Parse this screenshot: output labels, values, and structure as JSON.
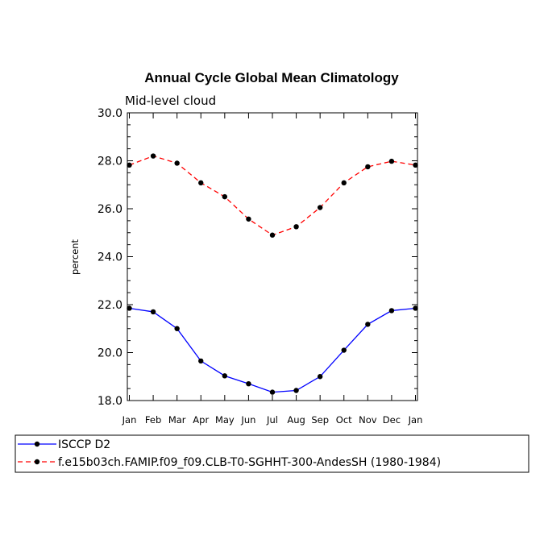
{
  "chart_data": {
    "type": "line",
    "title": "Annual Cycle Global Mean Climatology",
    "subtitle": "Mid-level cloud",
    "xlabel": "",
    "ylabel": "percent",
    "categories": [
      "Jan",
      "Feb",
      "Mar",
      "Apr",
      "May",
      "Jun",
      "Jul",
      "Aug",
      "Sep",
      "Oct",
      "Nov",
      "Dec",
      "Jan"
    ],
    "ylim": [
      18.0,
      30.0
    ],
    "yticks": [
      "18.0",
      "20.0",
      "22.0",
      "24.0",
      "26.0",
      "28.0",
      "30.0"
    ],
    "grid": false,
    "legend_position": "bottom",
    "series": [
      {
        "name": "ISCCP D2",
        "color": "#0000ff",
        "dash": "solid",
        "marker": "filled-circle",
        "values": [
          21.85,
          21.7,
          21.0,
          19.65,
          19.03,
          18.7,
          18.35,
          18.42,
          19.0,
          20.1,
          21.18,
          21.75,
          21.85
        ]
      },
      {
        "name": "f.e15b03ch.FAMIP.f09_f09.CLB-T0-SGHHT-300-AndesSH (1980-1984)",
        "color": "#ff0000",
        "dash": "dashed",
        "marker": "filled-circle",
        "values": [
          27.82,
          28.2,
          27.9,
          27.08,
          26.5,
          25.57,
          24.9,
          25.25,
          26.05,
          27.08,
          27.75,
          27.98,
          27.82
        ]
      }
    ]
  }
}
